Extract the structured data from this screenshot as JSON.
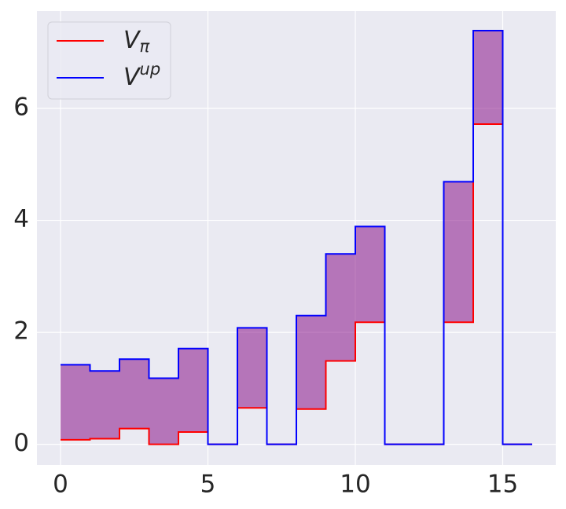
{
  "chart_data": {
    "type": "step",
    "x": [
      0,
      1,
      2,
      3,
      4,
      5,
      6,
      7,
      8,
      9,
      10,
      11,
      12,
      13,
      14,
      15,
      16
    ],
    "series": [
      {
        "name": "Vπ",
        "color": "#ff0000",
        "values": [
          0.08,
          0.1,
          0.28,
          0,
          0.22,
          0,
          0.65,
          0,
          0.63,
          1.49,
          2.18,
          0,
          0,
          2.18,
          5.72,
          0,
          0
        ]
      },
      {
        "name": "Vup",
        "color": "#0000ff",
        "values": [
          1.42,
          1.31,
          1.52,
          1.18,
          1.71,
          0,
          2.08,
          0,
          2.3,
          3.4,
          3.89,
          0,
          0,
          4.69,
          7.39,
          0,
          0
        ]
      }
    ],
    "fill_color": "#800080",
    "fill_alpha": 0.5,
    "xlim": [
      -0.8,
      16.8
    ],
    "xticks": [
      0,
      5,
      10,
      15
    ],
    "ylim": [
      -0.37,
      7.74
    ],
    "yticks": [
      0,
      2,
      4,
      6
    ],
    "grid": true,
    "legend": "upper left"
  }
}
